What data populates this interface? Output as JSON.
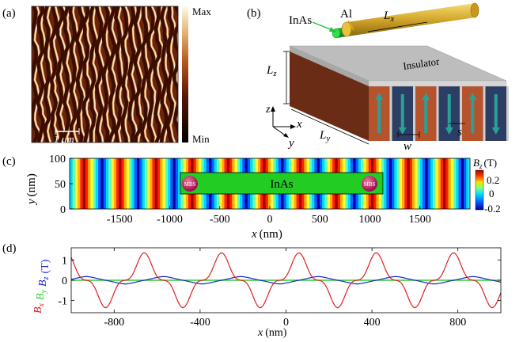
{
  "panel_a": {
    "label": "(a)",
    "colorbar_max": "Max",
    "colorbar_min": "Min",
    "scale_bar": "1 μm",
    "colors": {
      "dark": "#1a0500",
      "mid": "#8b3a0e",
      "bright": "#e8c896",
      "light": "#fff5dc"
    }
  },
  "panel_b": {
    "label": "(b)",
    "inas": "InAs",
    "al": "Al",
    "insulator": "Insulator",
    "lx": "L",
    "lx_sub": "x",
    "ly": "L",
    "ly_sub": "y",
    "lz": "L",
    "lz_sub": "z",
    "axis_x": "x",
    "axis_y": "y",
    "axis_z": "z",
    "w": "w",
    "s": "s",
    "colors": {
      "wire": "#1fbf3a",
      "shell": "#d4a82a",
      "magnet_a": "#b5532c",
      "magnet_b": "#2c3e64",
      "insulator": "#b9b9b9",
      "arrow": "#2aa198"
    }
  },
  "panel_c": {
    "label": "(c)",
    "inas": "InAs",
    "mbs_left": "MBS",
    "mbs_right": "MBS",
    "xlabel": "x",
    "xlabel_unit": "(nm)",
    "ylabel": "y",
    "ylabel_unit": "(nm)",
    "x_ticks": [
      "-1500",
      "-1000",
      "-500",
      "0",
      "500",
      "1000",
      "1500"
    ],
    "y_ticks": [
      "0",
      "50",
      "100"
    ],
    "cb_title": "B",
    "cb_title_sub": "z",
    "cb_unit": "(T)",
    "cb_ticks": [
      "0.2",
      "0",
      "-0.2"
    ],
    "colors": {
      "wire": "#22cc22",
      "mbs": "#c2185b"
    }
  },
  "chart_data": {
    "type": "line",
    "label": "(d)",
    "title": "",
    "xlabel": "x",
    "xlabel_unit": "(nm)",
    "ylabel_parts": [
      {
        "main": "B",
        "sub": "x",
        "color": "#e02020"
      },
      {
        "main": "B",
        "sub": "y",
        "color": "#33cc33"
      },
      {
        "main": "B",
        "sub": "z",
        "color": "#1a28cc"
      },
      {
        "main": "(T)",
        "sub": "",
        "color": "#1a28cc"
      }
    ],
    "xlim": [
      -1000,
      1000
    ],
    "ylim": [
      -1.6,
      1.6
    ],
    "x_ticks": [
      -800,
      -400,
      0,
      400,
      800
    ],
    "y_ticks": [
      1,
      0,
      -1
    ],
    "period_nm": 360,
    "bx_peaks_nm": [
      -660,
      -300,
      60,
      420,
      780
    ],
    "bx_troughs_nm": [
      -480,
      -120,
      240,
      600,
      960
    ],
    "peak_amplitude_T": 1.35,
    "by_value_T": 0.0,
    "bz_amplitude_T": 0.18,
    "series": [
      {
        "name": "Bx",
        "color": "#e02020"
      },
      {
        "name": "By",
        "color": "#33cc33"
      },
      {
        "name": "Bz",
        "color": "#1a28cc"
      }
    ]
  }
}
